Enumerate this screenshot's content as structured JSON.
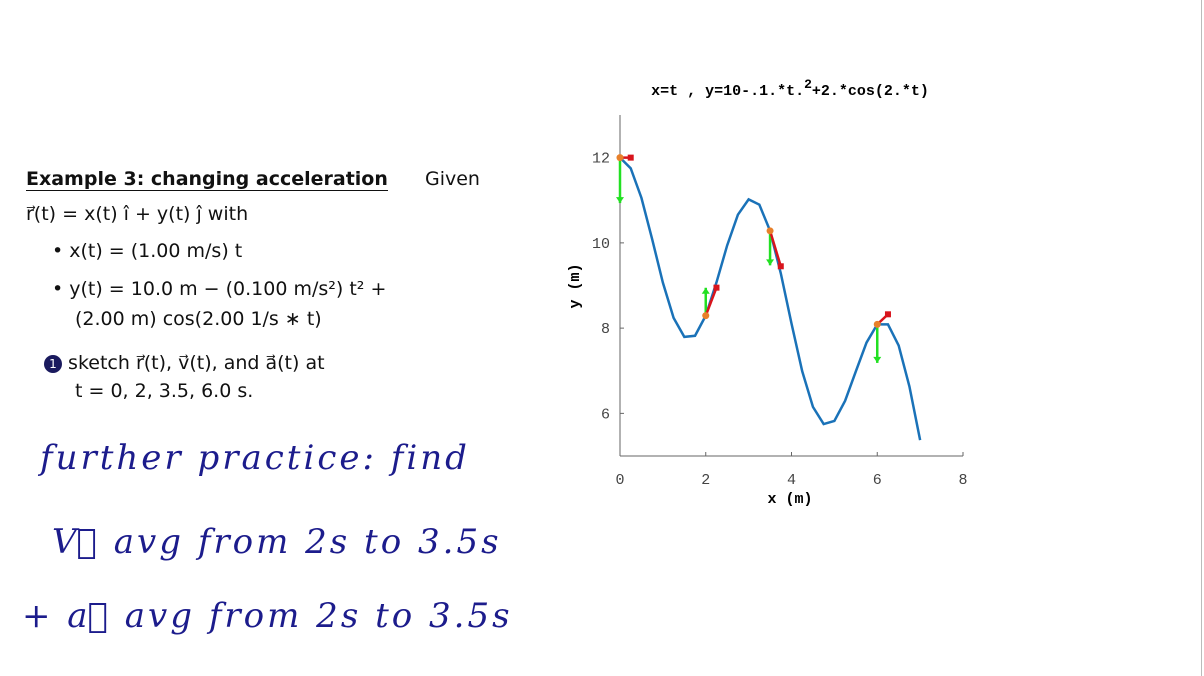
{
  "slide": {
    "heading": "Example 3: changing acceleration",
    "given": "Given",
    "line1": "r⃗(t) = x(t) î + y(t) ĵ with",
    "bullets": [
      "x(t) = (1.00 m/s) t",
      "y(t) = 10.0 m − (0.100 m/s²) t² +",
      "(2.00 m) cos(2.00 1/s ∗ t)"
    ],
    "item_number": "1",
    "item_lines": [
      "sketch r⃗(t), v⃗(t), and a⃗(t) at",
      "t = 0, 2, 3.5, 6.0 s."
    ]
  },
  "handwriting": {
    "lines": [
      "further practice: find",
      "V⃗ avg   from   2s to 3.5s",
      "+ a⃗ avg   from   2s  to  3.5s"
    ]
  },
  "chart_data": {
    "type": "line",
    "title_parts": [
      "x=t  , y=10-.1.*t.",
      "2",
      "+2.*cos(2.*t)"
    ],
    "x_label": "x (m)",
    "y_label": "y (m)",
    "x": [
      0,
      0.25,
      0.5,
      0.75,
      1,
      1.25,
      1.5,
      1.75,
      2,
      2.25,
      2.5,
      2.75,
      3,
      3.25,
      3.5,
      3.75,
      4,
      4.25,
      4.5,
      4.75,
      5,
      5.25,
      5.5,
      5.75,
      6,
      6.25,
      6.5,
      6.75,
      7
    ],
    "series": [
      {
        "color": "#1a72b8",
        "values": [
          12,
          11.7489,
          11.0556,
          10.0852,
          9.0677,
          8.2415,
          7.795,
          7.8208,
          8.2927,
          9.0722,
          9.9423,
          10.6611,
          11.0203,
          10.897,
          10.2828,
          9.2863,
          8.109,
          6.9878,
          6.1527,
          5.7491,
          5.8219,
          6.2937,
          6.9839,
          7.6614,
          8.0877,
          8.088,
          7.5904,
          6.6324,
          5.3735
        ]
      }
    ],
    "points": {
      "color": "#e8802a",
      "x": [
        0,
        2,
        3.5,
        6
      ],
      "y": [
        12,
        8.2927,
        10.2828,
        8.0877
      ]
    },
    "velocity": {
      "color": "#d8141c",
      "vx": [
        1,
        1,
        1,
        1
      ],
      "vy": [
        0,
        2.627,
        -3.328,
        0.946
      ]
    },
    "acceleration": {
      "color": "#22e022",
      "ax": [
        0,
        0,
        0,
        0
      ],
      "ay": [
        -8.2,
        5.029,
        -6.231,
        -6.951
      ]
    },
    "xlim": [
      0,
      8
    ],
    "ylim": [
      5,
      13
    ],
    "xticks": [
      0,
      2,
      4,
      6,
      8
    ],
    "yticks": [
      6,
      8,
      10,
      12
    ]
  }
}
